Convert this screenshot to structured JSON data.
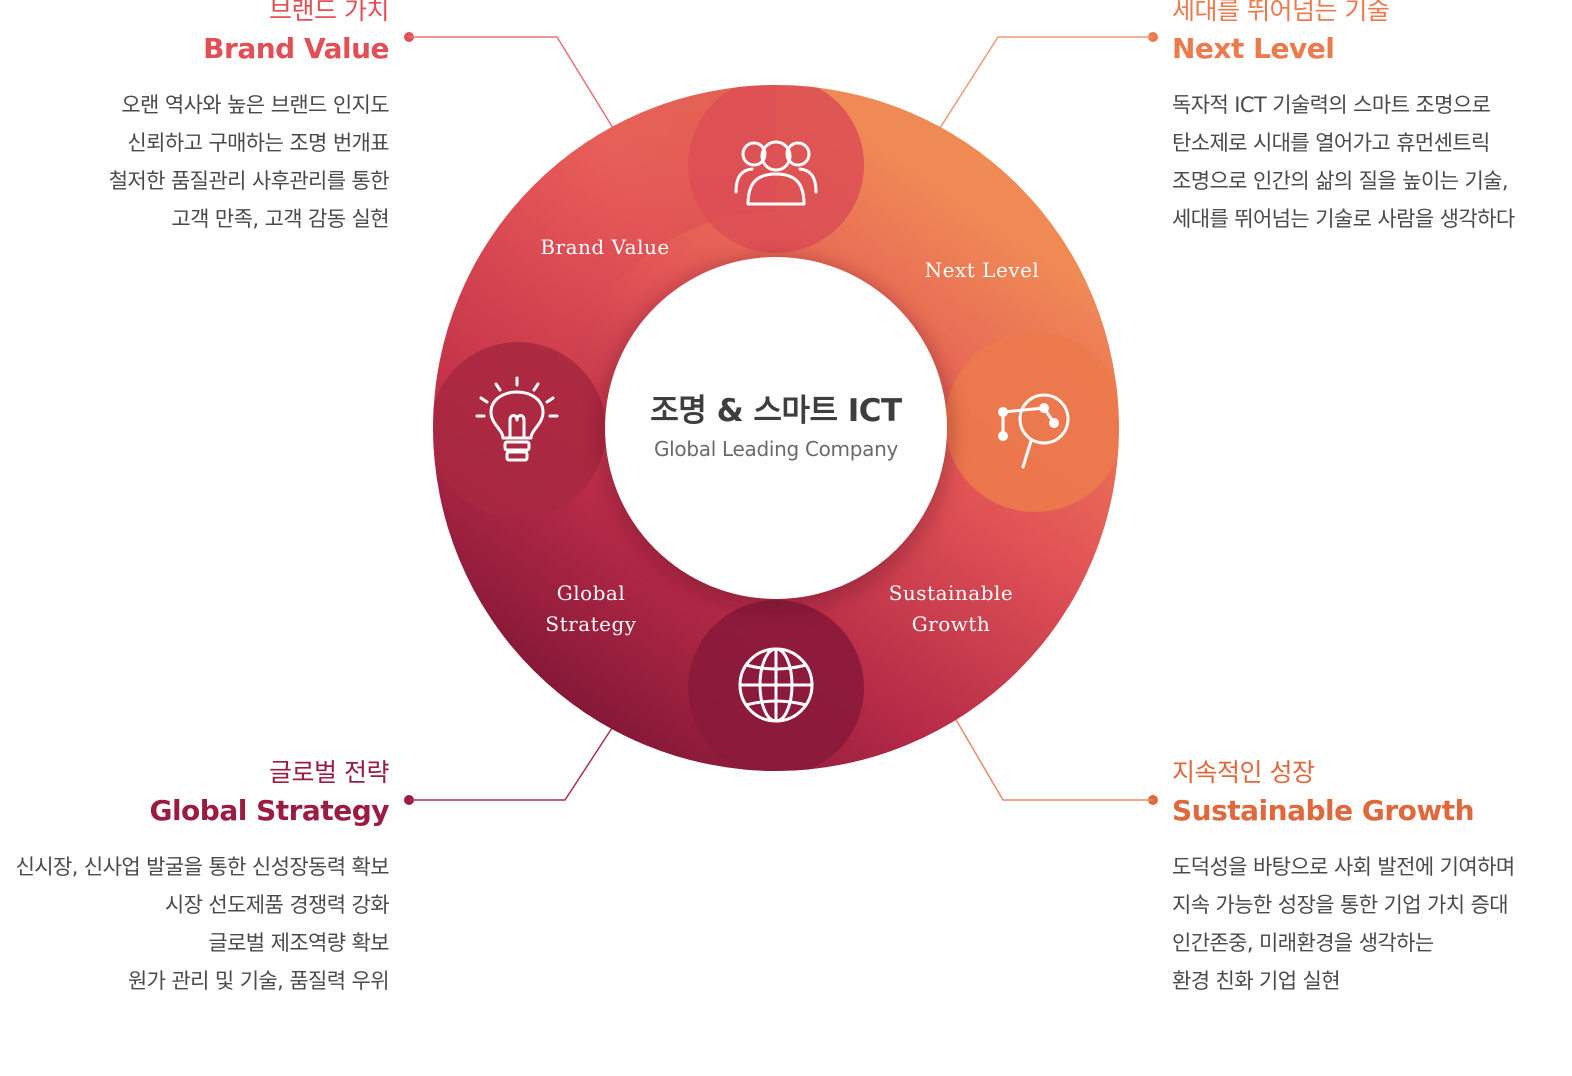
{
  "center": {
    "title": "조명 & 스마트 ICT",
    "subtitle": "Global Leading Company"
  },
  "colors": {
    "brand": "#e14f57",
    "next": "#ec7a4d",
    "global": "#9b1c40",
    "sustainable": "#e0683c"
  },
  "ring_labels": {
    "brand": "Brand Value",
    "next": "Next Level",
    "global_1": "Global",
    "global_2": "Strategy",
    "sustainable_1": "Sustainable",
    "sustainable_2": "Growth"
  },
  "icons": {
    "brand": "people-icon",
    "next": "magnifier-chart-icon",
    "global": "globe-icon",
    "strategy": "lightbulb-icon"
  },
  "blocks": {
    "brand": {
      "ko": "브랜드 가치",
      "en": "Brand Value",
      "lines": [
        "오랜 역사와 높은 브랜드 인지도",
        "신뢰하고 구매하는 조명 번개표",
        "철저한 품질관리 사후관리를 통한",
        "고객 만족, 고객 감동 실현"
      ]
    },
    "next": {
      "ko": "세대를 뛰어넘는 기술",
      "en": "Next Level",
      "lines": [
        "독자적 ICT 기술력의 스마트 조명으로",
        "탄소제로 시대를 열어가고 휴먼센트릭",
        "조명으로 인간의 삶의 질을 높이는 기술,",
        "세대를 뛰어넘는 기술로 사람을 생각하다"
      ]
    },
    "global": {
      "ko": "글로벌 전략",
      "en": "Global Strategy",
      "lines": [
        "신시장, 신사업 발굴을 통한 신성장동력 확보",
        "시장 선도제품 경쟁력 강화",
        "글로벌 제조역량 확보",
        "원가 관리 및 기술, 품질력 우위"
      ]
    },
    "sustainable": {
      "ko": "지속적인 성장",
      "en": "Sustainable Growth",
      "lines": [
        "도덕성을 바탕으로 사회 발전에 기여하며",
        "지속 가능한 성장을 통한 기업 가치 증대",
        "인간존중, 미래환경을 생각하는",
        "환경 친화 기업 실현"
      ]
    }
  }
}
